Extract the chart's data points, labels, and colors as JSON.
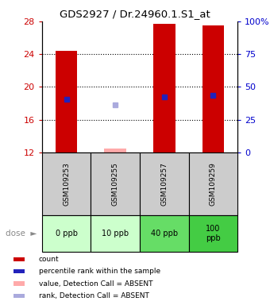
{
  "title": "GDS2927 / Dr.24960.1.S1_at",
  "samples": [
    "GSM109253",
    "GSM109255",
    "GSM109257",
    "GSM109259"
  ],
  "doses": [
    "0 ppb",
    "10 ppb",
    "40 ppb",
    "100\nppb"
  ],
  "dose_colors": [
    "#ccffcc",
    "#ccffcc",
    "#66dd66",
    "#44cc44"
  ],
  "bar_color": "#cc0000",
  "bar_absent_color": "#ffaaaa",
  "rank_color": "#2222bb",
  "rank_absent_color": "#aaaadd",
  "ylim_left": [
    12,
    28
  ],
  "ylim_right": [
    0,
    100
  ],
  "yticks_left": [
    12,
    16,
    20,
    24,
    28
  ],
  "yticks_right": [
    0,
    25,
    50,
    75,
    100
  ],
  "left_tick_color": "#cc0000",
  "right_tick_color": "#0000cc",
  "bars": [
    {
      "x": 0,
      "value": 24.4,
      "absent": false
    },
    {
      "x": 1,
      "value": 12.5,
      "absent": true
    },
    {
      "x": 2,
      "value": 27.7,
      "absent": false
    },
    {
      "x": 3,
      "value": 27.5,
      "absent": false
    }
  ],
  "ranks": [
    {
      "x": 0,
      "value": 18.5,
      "absent": false
    },
    {
      "x": 1,
      "value": 17.8,
      "absent": true
    },
    {
      "x": 2,
      "value": 18.8,
      "absent": false
    },
    {
      "x": 3,
      "value": 19.0,
      "absent": false
    }
  ],
  "bar_bottom": 12,
  "legend_items": [
    {
      "color": "#cc0000",
      "label": "count"
    },
    {
      "color": "#2222bb",
      "label": "percentile rank within the sample"
    },
    {
      "color": "#ffaaaa",
      "label": "value, Detection Call = ABSENT"
    },
    {
      "color": "#aaaadd",
      "label": "rank, Detection Call = ABSENT"
    }
  ]
}
